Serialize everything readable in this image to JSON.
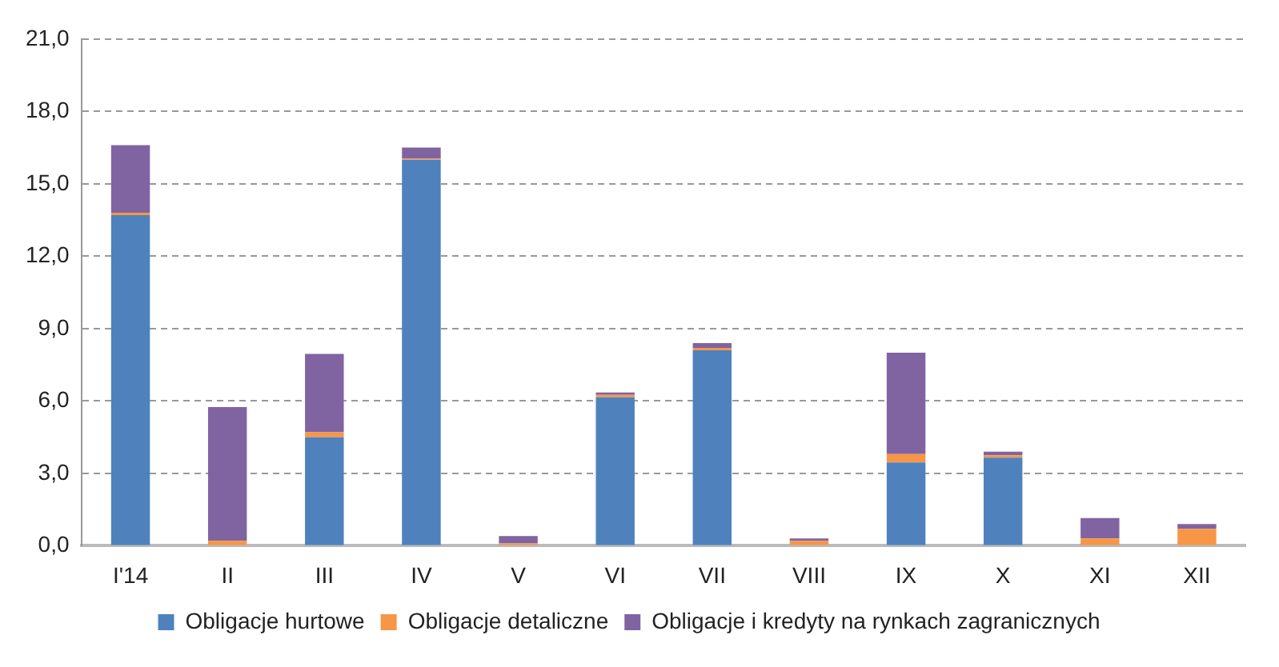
{
  "chart_data": {
    "type": "bar",
    "stacked": true,
    "categories": [
      "I'14",
      "II",
      "III",
      "IV",
      "V",
      "VI",
      "VII",
      "VIII",
      "IX",
      "X",
      "XI",
      "XII"
    ],
    "series": [
      {
        "name": "Obligacje hurtowe",
        "color": "#4f81bd",
        "values": [
          13.7,
          0,
          4.5,
          16.0,
          0,
          6.15,
          8.1,
          0,
          3.45,
          3.65,
          0,
          0
        ]
      },
      {
        "name": "Obligacje detaliczne",
        "color": "#f79646",
        "values": [
          0.1,
          0.2,
          0.2,
          0.05,
          0.1,
          0.1,
          0.1,
          0.2,
          0.35,
          0.1,
          0.3,
          0.7
        ]
      },
      {
        "name": "Obligacje i kredyty na rynkach zagranicznych",
        "color": "#8064a2",
        "values": [
          2.8,
          5.55,
          3.25,
          0.45,
          0.3,
          0.1,
          0.2,
          0.1,
          4.2,
          0.15,
          0.85,
          0.2
        ]
      }
    ],
    "ylim": [
      0,
      21
    ],
    "yticks": [
      {
        "value": 0,
        "label": "0,0"
      },
      {
        "value": 3,
        "label": "3,0"
      },
      {
        "value": 6,
        "label": "6,0"
      },
      {
        "value": 9,
        "label": "9,0"
      },
      {
        "value": 12,
        "label": "12,0"
      },
      {
        "value": 15,
        "label": "15,0"
      },
      {
        "value": 18,
        "label": "18,0"
      },
      {
        "value": 21,
        "label": "21,0"
      }
    ],
    "grid": "y",
    "legend": "bottom"
  }
}
